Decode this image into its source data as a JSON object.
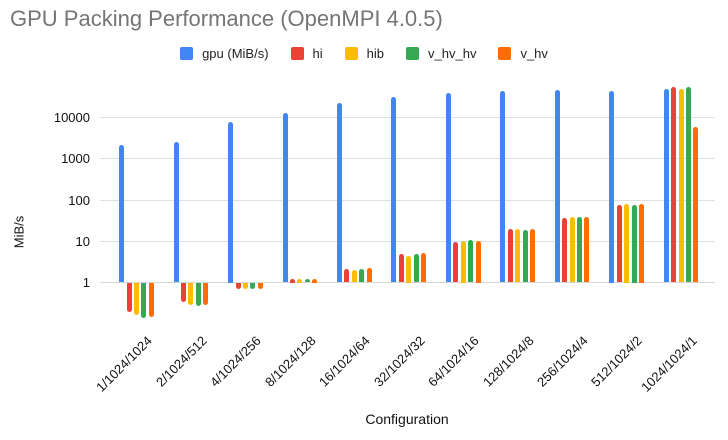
{
  "title": "GPU Packing Performance (OpenMPI 4.0.5)",
  "colors": {
    "title_text": "#757575",
    "axis_text": "#111111",
    "gridline": "#e0e0e0",
    "baseline": "#d6d6d6"
  },
  "chart_data": {
    "type": "bar",
    "title": "GPU Packing Performance (OpenMPI 4.0.5)",
    "xlabel": "Configuration",
    "ylabel": "MiB/s",
    "y_scale": "log",
    "y_ticks": [
      1,
      10,
      100,
      1000,
      10000
    ],
    "ylim": [
      0.1,
      60000
    ],
    "grid": true,
    "legend_position": "top",
    "categories": [
      "1/1024/1024",
      "2/1024/512",
      "4/1024/256",
      "8/1024/128",
      "16/1024/64",
      "32/1024/32",
      "64/1024/16",
      "128/1024/8",
      "256/1024/4",
      "512/1024/2",
      "1024/1024/1"
    ],
    "series": [
      {
        "name": "gpu (MiB/s)",
        "color": "#4285F4",
        "values": [
          2200,
          2500,
          8000,
          13000,
          23000,
          32000,
          40000,
          43000,
          46000,
          44000,
          48000
        ]
      },
      {
        "name": "hi",
        "color": "#EA4335",
        "values": [
          0.19,
          0.33,
          0.7,
          1.25,
          2.1,
          4.8,
          9.5,
          20,
          36,
          74,
          54000
        ]
      },
      {
        "name": "hib",
        "color": "#FBBC04",
        "values": [
          0.16,
          0.28,
          0.68,
          1.25,
          2.0,
          4.4,
          10,
          20,
          38,
          80,
          48000
        ]
      },
      {
        "name": "v_hv_hv",
        "color": "#34A853",
        "values": [
          0.14,
          0.27,
          0.68,
          1.2,
          2.1,
          4.8,
          10.5,
          19,
          38,
          78,
          54000
        ]
      },
      {
        "name": "v_hv",
        "color": "#FF6D01",
        "values": [
          0.15,
          0.29,
          0.7,
          1.25,
          2.3,
          5.1,
          10,
          20,
          38,
          80,
          6000
        ]
      }
    ]
  }
}
